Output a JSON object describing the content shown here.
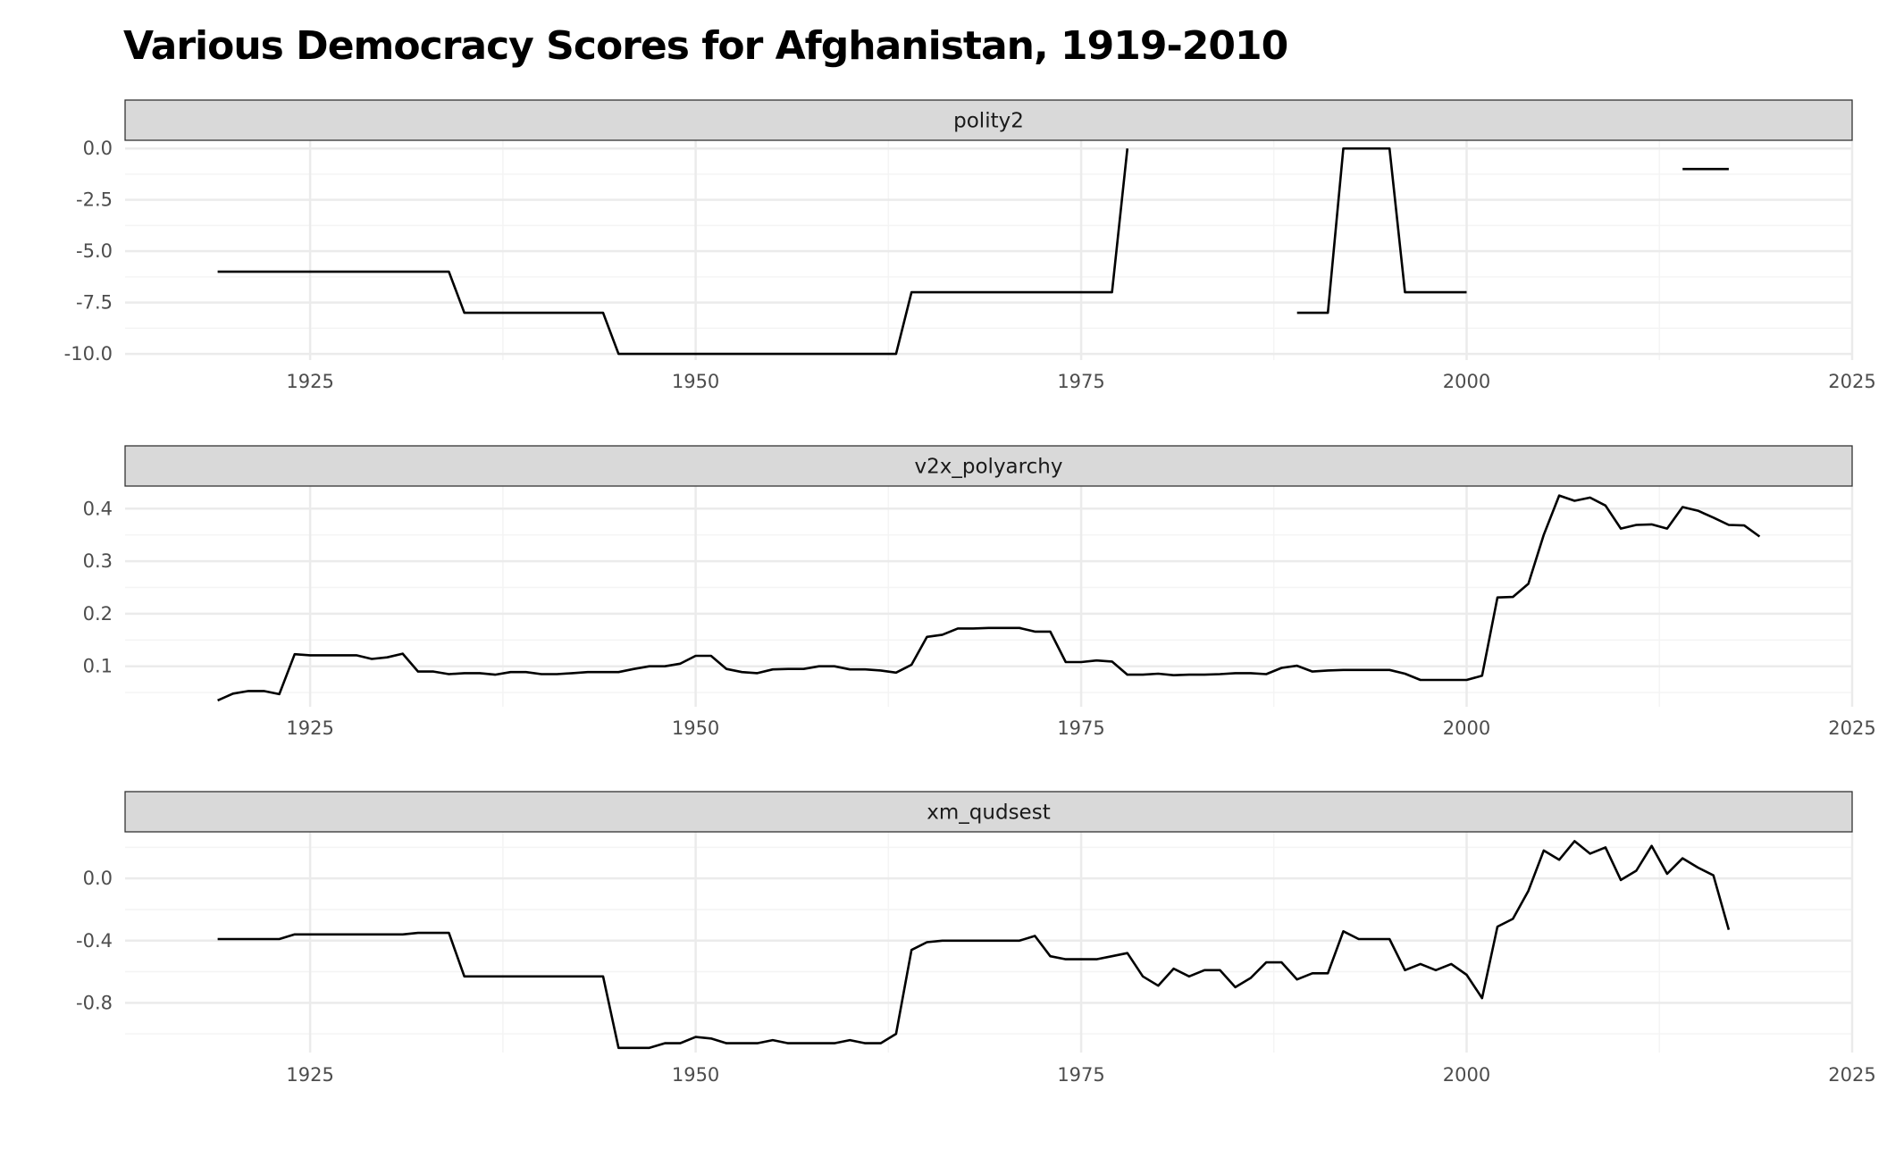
{
  "title": "Various Democracy Scores for Afghanistan, 1919-2010",
  "colors": {
    "line": "#000000",
    "strip_fill": "#d9d9d9",
    "strip_border": "#333333",
    "grid_major": "#ebebeb",
    "grid_minor": "#f4f4f4",
    "tick_text": "#4d4d4d"
  },
  "chart_data": [
    {
      "type": "line",
      "title": "polity2",
      "xlim": [
        1913,
        2025
      ],
      "ylim": [
        -10.3,
        0.4
      ],
      "x_ticks": [
        1925,
        1950,
        1975,
        2000,
        2025
      ],
      "y_ticks": [
        0,
        -2.5,
        -5,
        -7.5,
        -10
      ],
      "y_tick_labels": [
        "0.0",
        "-2.5",
        "-5.0",
        "-7.5",
        "-10.0"
      ],
      "grid": true,
      "segments": [
        [
          [
            1919,
            -6
          ],
          [
            1920,
            -6
          ],
          [
            1921,
            -6
          ],
          [
            1922,
            -6
          ],
          [
            1923,
            -6
          ],
          [
            1924,
            -6
          ],
          [
            1925,
            -6
          ],
          [
            1926,
            -6
          ],
          [
            1927,
            -6
          ],
          [
            1928,
            -6
          ],
          [
            1929,
            -6
          ],
          [
            1930,
            -6
          ],
          [
            1931,
            -6
          ],
          [
            1932,
            -6
          ],
          [
            1933,
            -6
          ],
          [
            1934,
            -6
          ],
          [
            1935,
            -8
          ],
          [
            1936,
            -8
          ],
          [
            1937,
            -8
          ],
          [
            1938,
            -8
          ],
          [
            1939,
            -8
          ],
          [
            1940,
            -8
          ],
          [
            1941,
            -8
          ],
          [
            1942,
            -8
          ],
          [
            1943,
            -8
          ],
          [
            1944,
            -8
          ],
          [
            1945,
            -10
          ],
          [
            1946,
            -10
          ],
          [
            1947,
            -10
          ],
          [
            1948,
            -10
          ],
          [
            1949,
            -10
          ],
          [
            1950,
            -10
          ],
          [
            1951,
            -10
          ],
          [
            1952,
            -10
          ],
          [
            1953,
            -10
          ],
          [
            1954,
            -10
          ],
          [
            1955,
            -10
          ],
          [
            1956,
            -10
          ],
          [
            1957,
            -10
          ],
          [
            1958,
            -10
          ],
          [
            1959,
            -10
          ],
          [
            1960,
            -10
          ],
          [
            1961,
            -10
          ],
          [
            1962,
            -10
          ],
          [
            1963,
            -10
          ],
          [
            1964,
            -7
          ],
          [
            1965,
            -7
          ],
          [
            1966,
            -7
          ],
          [
            1967,
            -7
          ],
          [
            1968,
            -7
          ],
          [
            1969,
            -7
          ],
          [
            1970,
            -7
          ],
          [
            1971,
            -7
          ],
          [
            1972,
            -7
          ],
          [
            1973,
            -7
          ],
          [
            1974,
            -7
          ],
          [
            1975,
            -7
          ],
          [
            1976,
            -7
          ],
          [
            1977,
            -7
          ],
          [
            1978,
            0
          ]
        ],
        [
          [
            1989,
            -8
          ],
          [
            1990,
            -8
          ],
          [
            1991,
            -8
          ],
          [
            1992,
            0
          ],
          [
            1993,
            0
          ],
          [
            1994,
            0
          ],
          [
            1995,
            0
          ],
          [
            1996,
            -7
          ],
          [
            1997,
            -7
          ],
          [
            1998,
            -7
          ],
          [
            1999,
            -7
          ],
          [
            2000,
            -7
          ]
        ],
        [
          [
            2014,
            -1
          ],
          [
            2015,
            -1
          ],
          [
            2016,
            -1
          ],
          [
            2017,
            -1
          ]
        ]
      ]
    },
    {
      "type": "line",
      "title": "v2x_polyarchy",
      "xlim": [
        1913,
        2025
      ],
      "ylim": [
        0.023,
        0.443
      ],
      "x_ticks": [
        1925,
        1950,
        1975,
        2000,
        2025
      ],
      "y_ticks": [
        0.1,
        0.2,
        0.3,
        0.4
      ],
      "y_tick_labels": [
        "0.1",
        "0.2",
        "0.3",
        "0.4"
      ],
      "grid": true,
      "segments": [
        [
          [
            1919,
            0.035
          ],
          [
            1920,
            0.048
          ],
          [
            1921,
            0.053
          ],
          [
            1922,
            0.053
          ],
          [
            1923,
            0.047
          ],
          [
            1924,
            0.123
          ],
          [
            1925,
            0.121
          ],
          [
            1926,
            0.121
          ],
          [
            1927,
            0.121
          ],
          [
            1928,
            0.121
          ],
          [
            1929,
            0.114
          ],
          [
            1930,
            0.117
          ],
          [
            1931,
            0.124
          ],
          [
            1932,
            0.09
          ],
          [
            1933,
            0.09
          ],
          [
            1934,
            0.085
          ],
          [
            1935,
            0.087
          ],
          [
            1936,
            0.087
          ],
          [
            1937,
            0.084
          ],
          [
            1938,
            0.089
          ],
          [
            1939,
            0.089
          ],
          [
            1940,
            0.085
          ],
          [
            1941,
            0.085
          ],
          [
            1942,
            0.087
          ],
          [
            1943,
            0.089
          ],
          [
            1944,
            0.089
          ],
          [
            1945,
            0.089
          ],
          [
            1946,
            0.095
          ],
          [
            1947,
            0.1
          ],
          [
            1948,
            0.1
          ],
          [
            1949,
            0.105
          ],
          [
            1950,
            0.12
          ],
          [
            1951,
            0.12
          ],
          [
            1952,
            0.095
          ],
          [
            1953,
            0.089
          ],
          [
            1954,
            0.087
          ],
          [
            1955,
            0.094
          ],
          [
            1956,
            0.095
          ],
          [
            1957,
            0.095
          ],
          [
            1958,
            0.1
          ],
          [
            1959,
            0.1
          ],
          [
            1960,
            0.094
          ],
          [
            1961,
            0.094
          ],
          [
            1962,
            0.092
          ],
          [
            1963,
            0.088
          ],
          [
            1964,
            0.103
          ],
          [
            1965,
            0.156
          ],
          [
            1966,
            0.16
          ],
          [
            1967,
            0.172
          ],
          [
            1968,
            0.172
          ],
          [
            1969,
            0.173
          ],
          [
            1970,
            0.173
          ],
          [
            1971,
            0.173
          ],
          [
            1972,
            0.166
          ],
          [
            1973,
            0.166
          ],
          [
            1974,
            0.108
          ],
          [
            1975,
            0.108
          ],
          [
            1976,
            0.111
          ],
          [
            1977,
            0.109
          ],
          [
            1978,
            0.084
          ],
          [
            1979,
            0.084
          ],
          [
            1980,
            0.086
          ],
          [
            1981,
            0.083
          ],
          [
            1982,
            0.084
          ],
          [
            1983,
            0.084
          ],
          [
            1984,
            0.085
          ],
          [
            1985,
            0.087
          ],
          [
            1986,
            0.087
          ],
          [
            1987,
            0.085
          ],
          [
            1988,
            0.097
          ],
          [
            1989,
            0.101
          ],
          [
            1990,
            0.09
          ],
          [
            1991,
            0.092
          ],
          [
            1992,
            0.093
          ],
          [
            1993,
            0.093
          ],
          [
            1994,
            0.093
          ],
          [
            1995,
            0.093
          ],
          [
            1996,
            0.086
          ],
          [
            1997,
            0.074
          ],
          [
            1998,
            0.074
          ],
          [
            1999,
            0.074
          ],
          [
            2000,
            0.074
          ],
          [
            2001,
            0.082
          ],
          [
            2002,
            0.231
          ],
          [
            2003,
            0.232
          ],
          [
            2004,
            0.257
          ],
          [
            2005,
            0.35
          ],
          [
            2006,
            0.425
          ],
          [
            2007,
            0.415
          ],
          [
            2008,
            0.421
          ],
          [
            2009,
            0.406
          ],
          [
            2010,
            0.362
          ],
          [
            2011,
            0.369
          ],
          [
            2012,
            0.37
          ],
          [
            2013,
            0.362
          ],
          [
            2014,
            0.403
          ],
          [
            2015,
            0.396
          ],
          [
            2016,
            0.383
          ],
          [
            2017,
            0.369
          ],
          [
            2018,
            0.368
          ],
          [
            2019,
            0.347
          ]
        ]
      ]
    },
    {
      "type": "line",
      "title": "xm_qudsest",
      "xlim": [
        1913,
        2025
      ],
      "ylim": [
        -1.12,
        0.3
      ],
      "x_ticks": [
        1925,
        1950,
        1975,
        2000,
        2025
      ],
      "y_ticks": [
        0,
        -0.4,
        -0.8
      ],
      "y_tick_labels": [
        "0.0",
        "-0.4",
        "-0.8"
      ],
      "grid": true,
      "segments": [
        [
          [
            1919,
            -0.39
          ],
          [
            1920,
            -0.39
          ],
          [
            1921,
            -0.39
          ],
          [
            1922,
            -0.39
          ],
          [
            1923,
            -0.39
          ],
          [
            1924,
            -0.36
          ],
          [
            1925,
            -0.36
          ],
          [
            1926,
            -0.36
          ],
          [
            1927,
            -0.36
          ],
          [
            1928,
            -0.36
          ],
          [
            1929,
            -0.36
          ],
          [
            1930,
            -0.36
          ],
          [
            1931,
            -0.36
          ],
          [
            1932,
            -0.35
          ],
          [
            1933,
            -0.35
          ],
          [
            1934,
            -0.35
          ],
          [
            1935,
            -0.63
          ],
          [
            1936,
            -0.63
          ],
          [
            1937,
            -0.63
          ],
          [
            1938,
            -0.63
          ],
          [
            1939,
            -0.63
          ],
          [
            1940,
            -0.63
          ],
          [
            1941,
            -0.63
          ],
          [
            1942,
            -0.63
          ],
          [
            1943,
            -0.63
          ],
          [
            1944,
            -0.63
          ],
          [
            1945,
            -1.09
          ],
          [
            1946,
            -1.09
          ],
          [
            1947,
            -1.09
          ],
          [
            1948,
            -1.06
          ],
          [
            1949,
            -1.06
          ],
          [
            1950,
            -1.02
          ],
          [
            1951,
            -1.03
          ],
          [
            1952,
            -1.06
          ],
          [
            1953,
            -1.06
          ],
          [
            1954,
            -1.06
          ],
          [
            1955,
            -1.04
          ],
          [
            1956,
            -1.06
          ],
          [
            1957,
            -1.06
          ],
          [
            1958,
            -1.06
          ],
          [
            1959,
            -1.06
          ],
          [
            1960,
            -1.04
          ],
          [
            1961,
            -1.06
          ],
          [
            1962,
            -1.06
          ],
          [
            1963,
            -1.0
          ],
          [
            1964,
            -0.46
          ],
          [
            1965,
            -0.41
          ],
          [
            1966,
            -0.4
          ],
          [
            1967,
            -0.4
          ],
          [
            1968,
            -0.4
          ],
          [
            1969,
            -0.4
          ],
          [
            1970,
            -0.4
          ],
          [
            1971,
            -0.4
          ],
          [
            1972,
            -0.37
          ],
          [
            1973,
            -0.5
          ],
          [
            1974,
            -0.52
          ],
          [
            1975,
            -0.52
          ],
          [
            1976,
            -0.52
          ],
          [
            1977,
            -0.5
          ],
          [
            1978,
            -0.48
          ],
          [
            1979,
            -0.63
          ],
          [
            1980,
            -0.69
          ],
          [
            1981,
            -0.58
          ],
          [
            1982,
            -0.63
          ],
          [
            1983,
            -0.59
          ],
          [
            1984,
            -0.59
          ],
          [
            1985,
            -0.7
          ],
          [
            1986,
            -0.64
          ],
          [
            1987,
            -0.54
          ],
          [
            1988,
            -0.54
          ],
          [
            1989,
            -0.65
          ],
          [
            1990,
            -0.61
          ],
          [
            1991,
            -0.61
          ],
          [
            1992,
            -0.34
          ],
          [
            1993,
            -0.39
          ],
          [
            1994,
            -0.39
          ],
          [
            1995,
            -0.39
          ],
          [
            1996,
            -0.59
          ],
          [
            1997,
            -0.55
          ],
          [
            1998,
            -0.59
          ],
          [
            1999,
            -0.55
          ],
          [
            2000,
            -0.62
          ],
          [
            2001,
            -0.77
          ],
          [
            2002,
            -0.31
          ],
          [
            2003,
            -0.26
          ],
          [
            2004,
            -0.08
          ],
          [
            2005,
            0.18
          ],
          [
            2006,
            0.12
          ],
          [
            2007,
            0.24
          ],
          [
            2008,
            0.16
          ],
          [
            2009,
            0.2
          ],
          [
            2010,
            -0.01
          ],
          [
            2011,
            0.05
          ],
          [
            2012,
            0.21
          ],
          [
            2013,
            0.03
          ],
          [
            2014,
            0.13
          ],
          [
            2015,
            0.07
          ],
          [
            2016,
            0.02
          ],
          [
            2017,
            -0.33
          ]
        ]
      ]
    }
  ]
}
